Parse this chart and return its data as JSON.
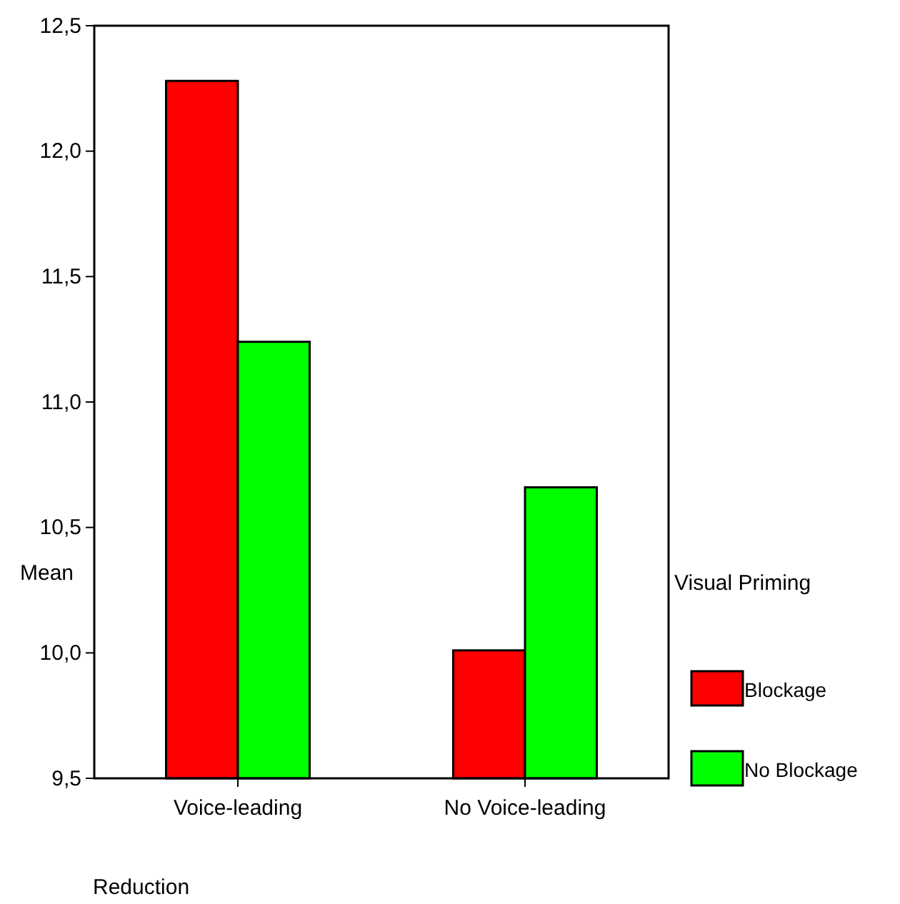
{
  "chart_data": {
    "type": "bar",
    "xlabel": "Reduction",
    "ylabel": "Mean",
    "legend_title": "Visual Priming",
    "categories": [
      "Voice-leading",
      "No Voice-leading"
    ],
    "series": [
      {
        "name": "Blockage",
        "color": "#ff0000",
        "values": [
          12.28,
          10.01
        ]
      },
      {
        "name": "No Blockage",
        "color": "#00ff00",
        "values": [
          11.24,
          10.66
        ]
      }
    ],
    "ylim": [
      9.5,
      12.5
    ],
    "yticks": [
      {
        "value": 9.5,
        "label": "9,5"
      },
      {
        "value": 10,
        "label": "10,0"
      },
      {
        "value": 10.5,
        "label": "10,5"
      },
      {
        "value": 11,
        "label": "11,0"
      },
      {
        "value": 11.5,
        "label": "11,5"
      },
      {
        "value": 12,
        "label": "12,0"
      },
      {
        "value": 12.5,
        "label": "12,5"
      }
    ],
    "grid": false,
    "legend": "right"
  }
}
